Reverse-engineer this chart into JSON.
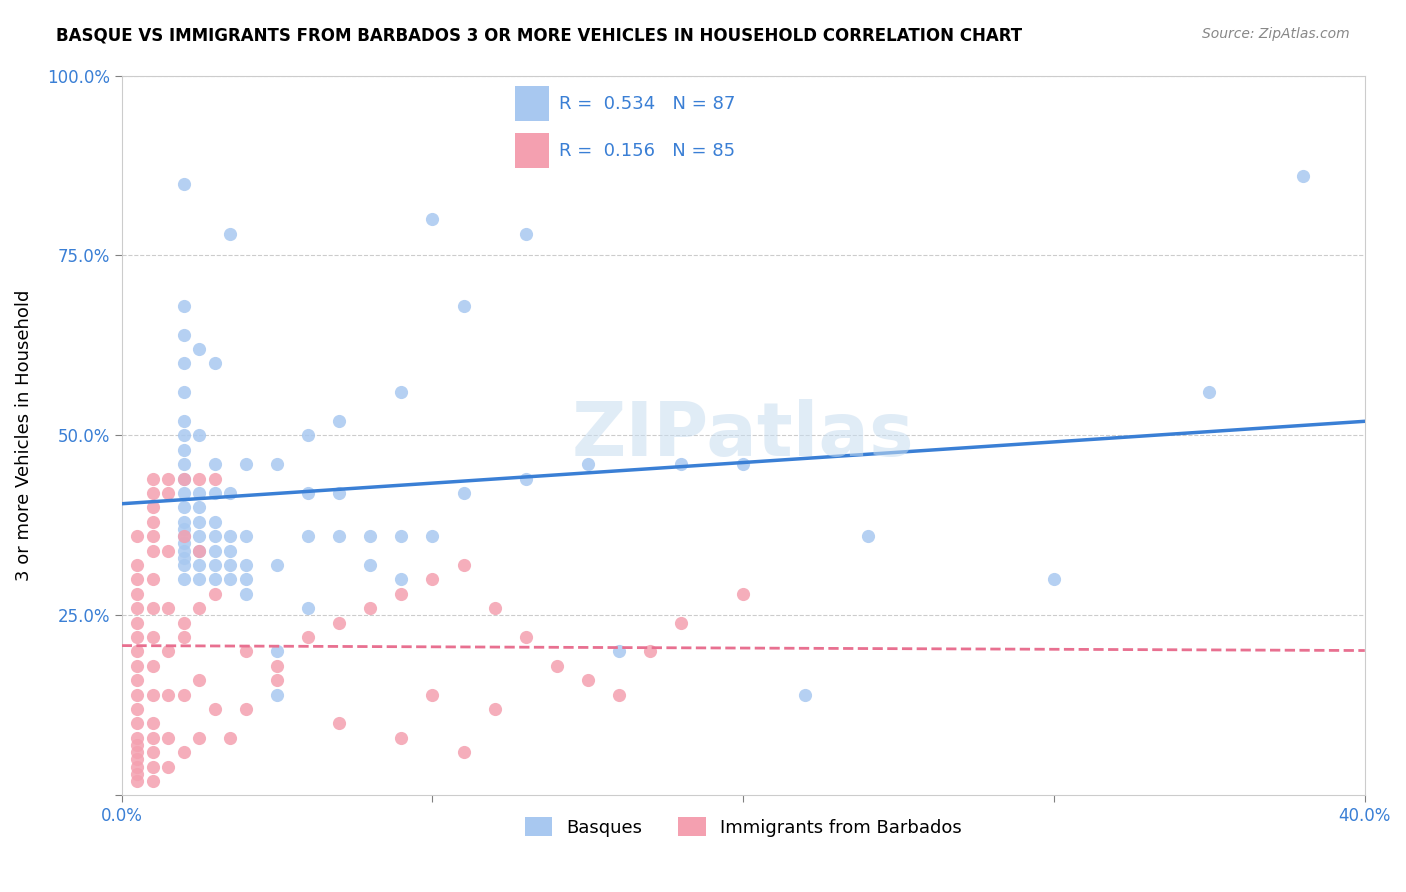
{
  "title": "BASQUE VS IMMIGRANTS FROM BARBADOS 3 OR MORE VEHICLES IN HOUSEHOLD CORRELATION CHART",
  "source": "Source: ZipAtlas.com",
  "ylabel_text": "3 or more Vehicles in Household",
  "x_min": 0.0,
  "x_max": 0.4,
  "y_min": 0.0,
  "y_max": 1.0,
  "x_ticks": [
    0.0,
    0.1,
    0.2,
    0.3,
    0.4
  ],
  "x_tick_labels": [
    "0.0%",
    "",
    "",
    "",
    "40.0%"
  ],
  "y_ticks": [
    0.0,
    0.25,
    0.5,
    0.75,
    1.0
  ],
  "y_tick_labels": [
    "",
    "25.0%",
    "50.0%",
    "75.0%",
    "100.0%"
  ],
  "basque_color": "#a8c8f0",
  "barbados_color": "#f4a0b0",
  "line_blue": "#3a7fd5",
  "line_pink": "#e87090",
  "legend_R1": "0.534",
  "legend_N1": "87",
  "legend_R2": "0.156",
  "legend_N2": "85",
  "watermark": "ZIPatlas",
  "basque_points_x": [
    0.02,
    0.02,
    0.02,
    0.02,
    0.02,
    0.02,
    0.02,
    0.02,
    0.02,
    0.02,
    0.02,
    0.02,
    0.02,
    0.02,
    0.02,
    0.02,
    0.02,
    0.02,
    0.02,
    0.02,
    0.025,
    0.025,
    0.025,
    0.025,
    0.025,
    0.025,
    0.025,
    0.025,
    0.025,
    0.03,
    0.03,
    0.03,
    0.03,
    0.03,
    0.03,
    0.03,
    0.03,
    0.035,
    0.035,
    0.035,
    0.035,
    0.035,
    0.035,
    0.04,
    0.04,
    0.04,
    0.04,
    0.04,
    0.05,
    0.05,
    0.05,
    0.05,
    0.06,
    0.06,
    0.06,
    0.06,
    0.07,
    0.07,
    0.07,
    0.08,
    0.08,
    0.09,
    0.09,
    0.09,
    0.1,
    0.1,
    0.11,
    0.11,
    0.13,
    0.13,
    0.15,
    0.16,
    0.18,
    0.2,
    0.22,
    0.24,
    0.3,
    0.35,
    0.38
  ],
  "basque_points_y": [
    0.3,
    0.32,
    0.33,
    0.34,
    0.35,
    0.36,
    0.37,
    0.38,
    0.4,
    0.42,
    0.44,
    0.46,
    0.48,
    0.5,
    0.52,
    0.56,
    0.6,
    0.64,
    0.68,
    0.85,
    0.3,
    0.32,
    0.34,
    0.36,
    0.38,
    0.4,
    0.42,
    0.5,
    0.62,
    0.3,
    0.32,
    0.34,
    0.36,
    0.38,
    0.42,
    0.46,
    0.6,
    0.3,
    0.32,
    0.34,
    0.36,
    0.42,
    0.78,
    0.28,
    0.3,
    0.32,
    0.36,
    0.46,
    0.14,
    0.2,
    0.32,
    0.46,
    0.26,
    0.36,
    0.42,
    0.5,
    0.36,
    0.42,
    0.52,
    0.32,
    0.36,
    0.3,
    0.36,
    0.56,
    0.36,
    0.8,
    0.42,
    0.68,
    0.44,
    0.78,
    0.46,
    0.2,
    0.46,
    0.46,
    0.14,
    0.36,
    0.3,
    0.56,
    0.86
  ],
  "barbados_points_x": [
    0.005,
    0.005,
    0.005,
    0.005,
    0.005,
    0.005,
    0.005,
    0.005,
    0.005,
    0.005,
    0.005,
    0.005,
    0.005,
    0.005,
    0.005,
    0.005,
    0.005,
    0.005,
    0.005,
    0.005,
    0.01,
    0.01,
    0.01,
    0.01,
    0.01,
    0.01,
    0.01,
    0.01,
    0.01,
    0.01,
    0.01,
    0.01,
    0.01,
    0.01,
    0.01,
    0.01,
    0.015,
    0.015,
    0.015,
    0.015,
    0.015,
    0.015,
    0.015,
    0.02,
    0.02,
    0.02,
    0.02,
    0.02,
    0.025,
    0.025,
    0.025,
    0.025,
    0.03,
    0.03,
    0.035,
    0.04,
    0.05,
    0.07,
    0.09,
    0.1,
    0.11,
    0.12,
    0.015,
    0.02,
    0.025,
    0.03,
    0.04,
    0.05,
    0.06,
    0.07,
    0.08,
    0.09,
    0.1,
    0.11,
    0.12,
    0.13,
    0.14,
    0.15,
    0.16,
    0.17,
    0.18,
    0.2
  ],
  "barbados_points_y": [
    0.02,
    0.03,
    0.04,
    0.05,
    0.06,
    0.07,
    0.08,
    0.1,
    0.12,
    0.14,
    0.16,
    0.18,
    0.2,
    0.22,
    0.24,
    0.26,
    0.28,
    0.3,
    0.32,
    0.36,
    0.02,
    0.04,
    0.06,
    0.08,
    0.1,
    0.14,
    0.18,
    0.22,
    0.26,
    0.3,
    0.34,
    0.36,
    0.38,
    0.4,
    0.42,
    0.44,
    0.04,
    0.08,
    0.14,
    0.2,
    0.26,
    0.34,
    0.42,
    0.06,
    0.14,
    0.22,
    0.36,
    0.44,
    0.08,
    0.16,
    0.26,
    0.44,
    0.12,
    0.44,
    0.08,
    0.12,
    0.16,
    0.1,
    0.08,
    0.14,
    0.06,
    0.12,
    0.44,
    0.24,
    0.34,
    0.28,
    0.2,
    0.18,
    0.22,
    0.24,
    0.26,
    0.28,
    0.3,
    0.32,
    0.26,
    0.22,
    0.18,
    0.16,
    0.14,
    0.2,
    0.24,
    0.28
  ]
}
